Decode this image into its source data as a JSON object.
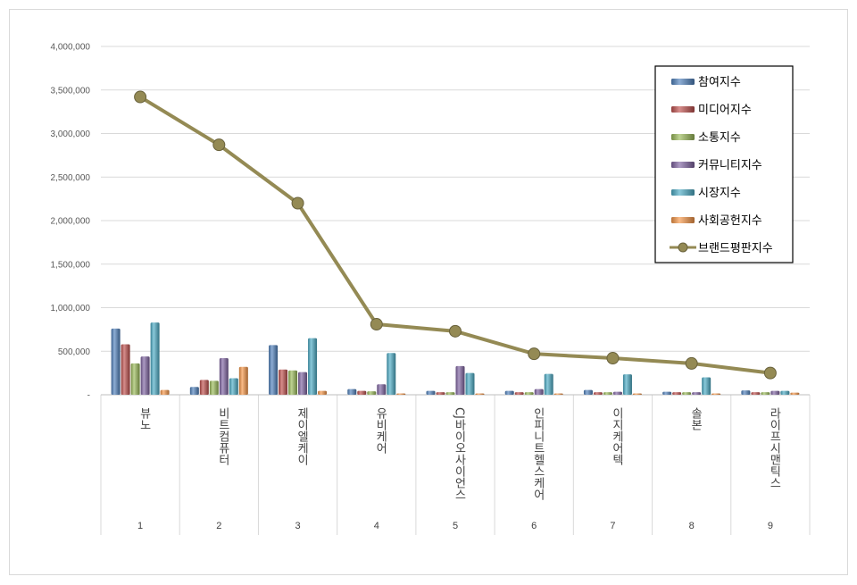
{
  "chart_data": {
    "type": "bar",
    "numbers": [
      "1",
      "2",
      "3",
      "4",
      "5",
      "6",
      "7",
      "8",
      "9"
    ],
    "categories": [
      "뷰노",
      "비트컴퓨터",
      "제이엘케이",
      "유비케어",
      "CJ바이오사이언스",
      "인피니트헬스케어",
      "이지케어텍",
      "솔본",
      "라이프시맨틱스"
    ],
    "ylim": [
      0,
      4000000
    ],
    "yticks": [
      0,
      500000,
      1000000,
      1500000,
      2000000,
      2500000,
      3000000,
      3500000,
      4000000
    ],
    "ytick_labels": [
      "-",
      "500,000",
      "1,000,000",
      "1,500,000",
      "2,000,000",
      "2,500,000",
      "3,000,000",
      "3,500,000",
      "4,000,000"
    ],
    "grid": true,
    "legend_position": "top-right",
    "series": [
      {
        "name": "참여지수",
        "type": "bar",
        "color": "#4f81bd",
        "values": [
          760000,
          90000,
          570000,
          65000,
          45000,
          45000,
          55000,
          35000,
          50000
        ]
      },
      {
        "name": "미디어지수",
        "type": "bar",
        "color": "#c0504d",
        "values": [
          580000,
          170000,
          290000,
          45000,
          30000,
          30000,
          30000,
          30000,
          30000
        ]
      },
      {
        "name": "소통지수",
        "type": "bar",
        "color": "#9bbb59",
        "values": [
          360000,
          160000,
          280000,
          40000,
          30000,
          30000,
          30000,
          30000,
          30000
        ]
      },
      {
        "name": "커뮤니티지수",
        "type": "bar",
        "color": "#8064a2",
        "values": [
          440000,
          420000,
          260000,
          120000,
          330000,
          65000,
          35000,
          30000,
          45000
        ]
      },
      {
        "name": "시장지수",
        "type": "bar",
        "color": "#4bacc6",
        "values": [
          830000,
          190000,
          650000,
          480000,
          250000,
          240000,
          235000,
          200000,
          45000
        ]
      },
      {
        "name": "사회공헌지수",
        "type": "bar",
        "color": "#f79646",
        "values": [
          55000,
          320000,
          45000,
          15000,
          10000,
          10000,
          12000,
          8000,
          25000
        ]
      },
      {
        "name": "브랜드평판지수",
        "type": "line",
        "color": "#948a54",
        "values": [
          3420000,
          2870000,
          2200000,
          810000,
          730000,
          470000,
          420000,
          360000,
          250000
        ]
      }
    ]
  }
}
